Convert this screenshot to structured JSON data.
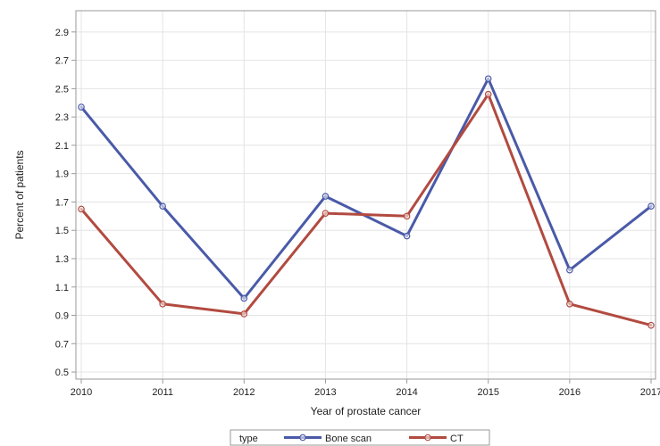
{
  "chart_data": {
    "type": "line",
    "x": [
      "2010",
      "2011",
      "2012",
      "2013",
      "2014",
      "2015",
      "2016",
      "2017"
    ],
    "x_tick_labels": [
      "2010",
      "2011",
      "2012",
      "2013",
      "2014",
      "2015",
      "2016",
      "2017"
    ],
    "series": [
      {
        "name": "Bone scan",
        "color": "#4a5aa8",
        "values": [
          2.37,
          1.67,
          1.02,
          1.74,
          1.46,
          2.57,
          1.22,
          1.67
        ]
      },
      {
        "name": "CT",
        "color": "#b24a40",
        "values": [
          1.65,
          0.98,
          0.91,
          1.62,
          1.6,
          2.46,
          0.98,
          0.83
        ]
      }
    ],
    "xlabel": "Year of prostate cancer",
    "ylabel": "Percent of patients",
    "ylim": [
      0.45,
      3.05
    ],
    "yticks": [
      0.5,
      0.7,
      0.9,
      1.1,
      1.3,
      1.5,
      1.7,
      1.9,
      2.1,
      2.3,
      2.5,
      2.7,
      2.9
    ],
    "ytick_labels": [
      "0.5",
      "0.7",
      "0.9",
      "1.1",
      "1.3",
      "1.5",
      "1.7",
      "1.9",
      "2.1",
      "2.3",
      "2.5",
      "2.7",
      "2.9"
    ],
    "grid": true,
    "legend": {
      "title": "type",
      "position": "bottom"
    }
  }
}
